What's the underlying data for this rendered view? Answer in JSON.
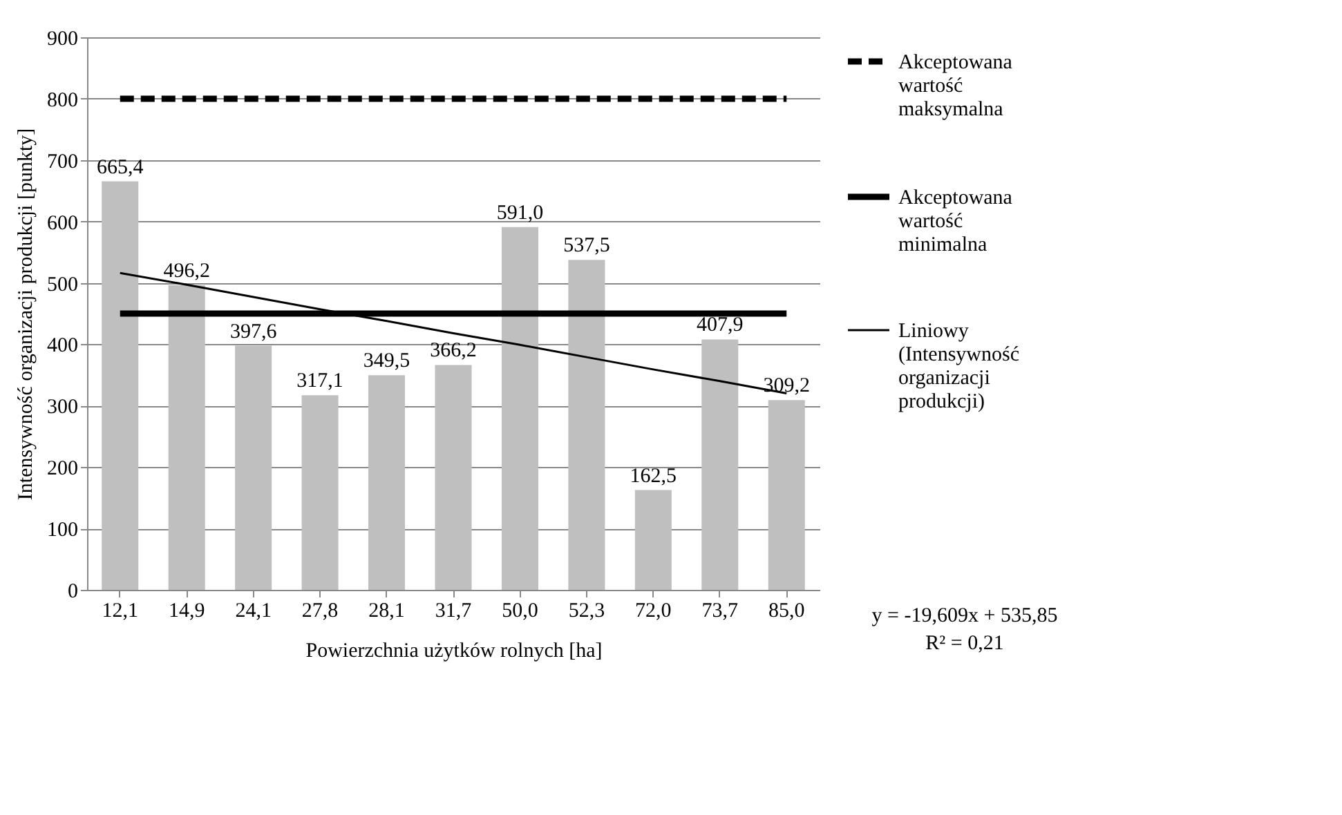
{
  "chart_data": {
    "type": "bar",
    "categories": [
      "12,1",
      "14,9",
      "24,1",
      "27,8",
      "28,1",
      "31,7",
      "50,0",
      "52,3",
      "72,0",
      "73,7",
      "85,0"
    ],
    "xlabel": "Powierzchnia użytków rolnych [ha]",
    "ylabel": "Intensywność organizacji produkcji [punkty]",
    "ylim": [
      0,
      900
    ],
    "yticks": [
      0,
      100,
      200,
      300,
      400,
      500,
      600,
      700,
      800,
      900
    ],
    "grid": "y",
    "legend": "right",
    "series": [
      {
        "color": "#bfbfbf",
        "values": [
          665.4,
          496.2,
          397.6,
          317.1,
          349.5,
          366.2,
          591.0,
          537.5,
          162.5,
          407.9,
          309.2
        ],
        "value_labels": [
          "665,4",
          "496,2",
          "397,6",
          "317,1",
          "349,5",
          "366,2",
          "591,0",
          "537,5",
          "162,5",
          "407,9",
          "309,2"
        ]
      },
      {
        "type": "line",
        "name": "Akceptowana wartość maksymalna",
        "color": "#000000",
        "line_style": "dashed",
        "values": [
          800,
          800,
          800,
          800,
          800,
          800,
          800,
          800,
          800,
          800,
          800
        ]
      },
      {
        "type": "line",
        "name": "Akceptowana wartość minimalna",
        "color": "#000000",
        "line_style": "solid",
        "values": [
          450,
          450,
          450,
          450,
          450,
          450,
          450,
          450,
          450,
          450,
          450
        ]
      },
      {
        "type": "line",
        "name": "Liniowy (Intensywność organizacji produkcji)",
        "color": "#000000",
        "line_style": "solid",
        "values": [
          516,
          497,
          477,
          457,
          438,
          418,
          399,
          379,
          359,
          340,
          320
        ]
      }
    ],
    "annotations": [
      "y = -19,609x + 535,85",
      "R² = 0,21"
    ]
  }
}
